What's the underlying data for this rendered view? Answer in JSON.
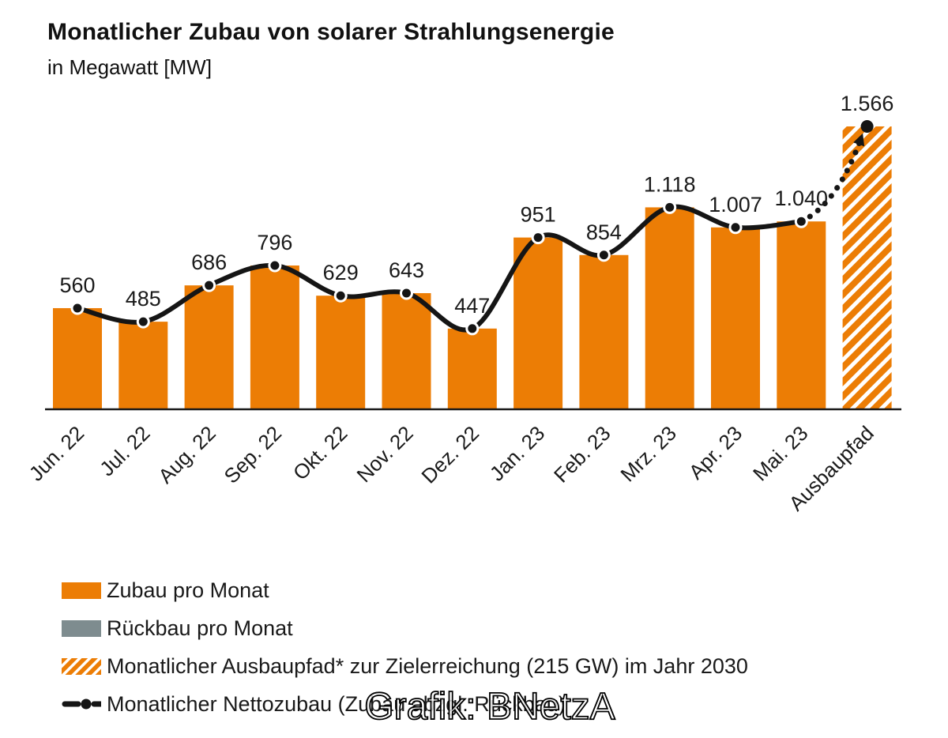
{
  "title": "Monatlicher Zubau von solarer Strahlungsenergie",
  "subtitle": "in Megawatt [MW]",
  "watermark": "Grafik: BNetzA",
  "colors": {
    "orange": "#EC7D05",
    "gray": "#7E8C8F",
    "line_black": "#151515",
    "axis": "#1a1a1a"
  },
  "legend": {
    "items": [
      {
        "label": "Zubau pro Monat",
        "swatch": "solid-orange"
      },
      {
        "label": "Rückbau pro Monat",
        "swatch": "solid-gray"
      },
      {
        "label": "Monatlicher Ausbaupfad* zur Zielerreichung (215 GW) im Jahr 2030",
        "swatch": "hatched-orange"
      },
      {
        "label": "Monatlicher Nettozubau (Zubau abzgl. Rückbau)",
        "swatch": "black-line-dot"
      }
    ]
  },
  "chart_data": {
    "type": "bar",
    "title": "Monatlicher Zubau von solarer Strahlungsenergie",
    "ylabel": "in Megawatt [MW]",
    "unit": "MW",
    "grid": false,
    "legend_position": "bottom-left",
    "ylim": [
      0,
      1650
    ],
    "categories": [
      "Jun. 22",
      "Jul. 22",
      "Aug. 22",
      "Sep. 22",
      "Okt. 22",
      "Nov. 22",
      "Dez. 22",
      "Jan. 23",
      "Feb. 23",
      "Mrz. 23",
      "Apr. 23",
      "Mai. 23",
      "Ausbaupfad"
    ],
    "series": [
      {
        "name": "Zubau pro Monat",
        "type": "bar",
        "style": "solid-orange",
        "values": [
          560,
          485,
          686,
          796,
          629,
          643,
          447,
          951,
          854,
          1118,
          1007,
          1040,
          null
        ]
      },
      {
        "name": "Rückbau pro Monat",
        "type": "bar",
        "style": "solid-gray",
        "values": []
      },
      {
        "name": "Monatlicher Ausbaupfad* zur Zielerreichung (215 GW) im Jahr 2030",
        "type": "bar",
        "style": "hatched-orange",
        "values": [
          null,
          null,
          null,
          null,
          null,
          null,
          null,
          null,
          null,
          null,
          null,
          null,
          1566
        ]
      },
      {
        "name": "Monatlicher Nettozubau (Zubau abzgl. Rückbau)",
        "type": "line",
        "style": "black-line-white-ring-dots",
        "values": [
          560,
          485,
          686,
          796,
          629,
          643,
          447,
          951,
          854,
          1118,
          1007,
          1040
        ],
        "projection_to": {
          "category": "Ausbaupfad",
          "value": 1566,
          "style": "dotted-arrow"
        }
      }
    ],
    "value_labels": [
      "560",
      "485",
      "686",
      "796",
      "629",
      "643",
      "447",
      "951",
      "854",
      "1.118",
      "1.007",
      "1.040",
      "1.566"
    ]
  }
}
